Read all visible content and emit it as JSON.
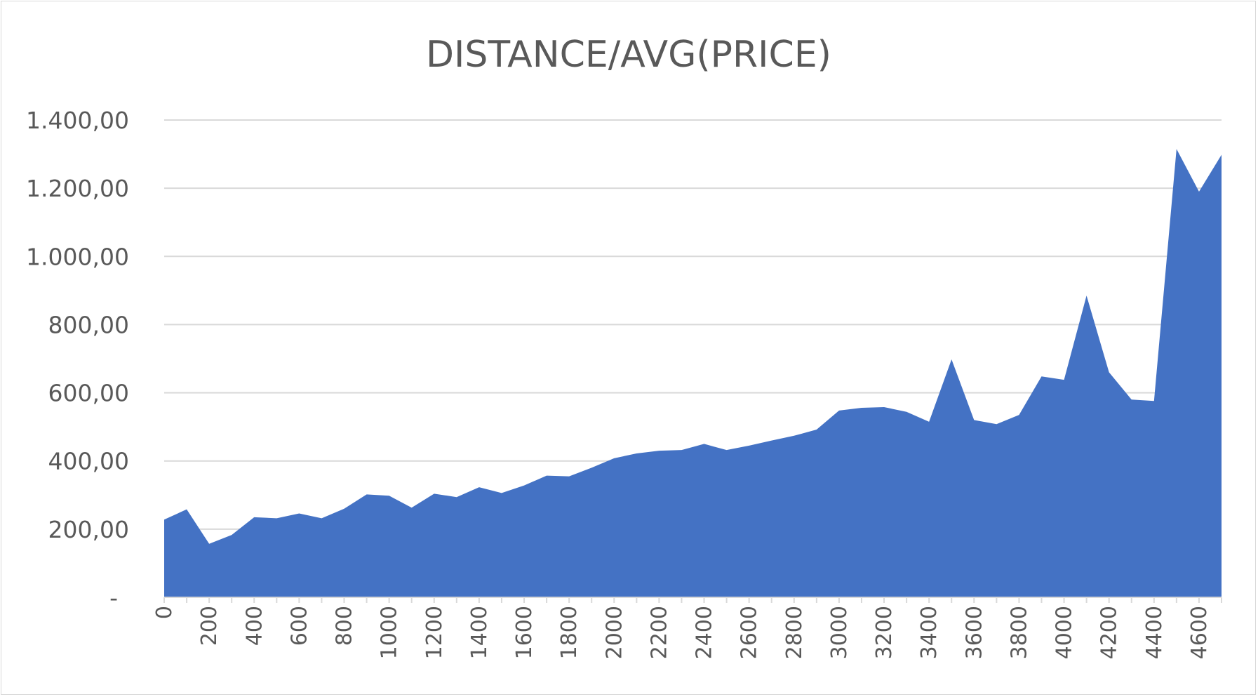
{
  "chart_data": {
    "type": "area",
    "title": "DISTANCE/AVG(PRICE)",
    "xlabel": "",
    "ylabel": "",
    "ylim": [
      0,
      1400
    ],
    "yticks": [
      0,
      200,
      400,
      600,
      800,
      1000,
      1200,
      1400
    ],
    "ytick_labels": [
      "-",
      "200,00",
      "400,00",
      "600,00",
      "800,00",
      "1.000,00",
      "1.200,00",
      "1.400,00"
    ],
    "x": [
      0,
      100,
      200,
      300,
      400,
      500,
      600,
      700,
      800,
      900,
      1000,
      1100,
      1200,
      1300,
      1400,
      1500,
      1600,
      1700,
      1800,
      1900,
      2000,
      2100,
      2200,
      2300,
      2400,
      2500,
      2600,
      2700,
      2800,
      2900,
      3000,
      3100,
      3200,
      3300,
      3400,
      3500,
      3600,
      3700,
      3800,
      3900,
      4000,
      4100,
      4200,
      4300,
      4400,
      4500,
      4600,
      4700
    ],
    "xtick_labels": [
      "0",
      "200",
      "400",
      "600",
      "800",
      "1000",
      "1200",
      "1400",
      "1600",
      "1800",
      "2000",
      "2200",
      "2400",
      "2600",
      "2800",
      "3000",
      "3200",
      "3400",
      "3600",
      "3800",
      "4000",
      "4200",
      "4400",
      "4600"
    ],
    "series": [
      {
        "color": "#4472c4",
        "values": [
          228,
          258,
          157,
          183,
          235,
          232,
          246,
          232,
          260,
          302,
          298,
          263,
          304,
          294,
          323,
          306,
          328,
          357,
          355,
          380,
          408,
          422,
          430,
          432,
          450,
          432,
          445,
          460,
          474,
          492,
          548,
          556,
          558,
          544,
          515,
          698,
          520,
          508,
          535,
          648,
          638,
          885,
          660,
          580,
          576,
          1315,
          1190,
          1298
        ]
      }
    ],
    "grid": true,
    "legend": "none"
  }
}
